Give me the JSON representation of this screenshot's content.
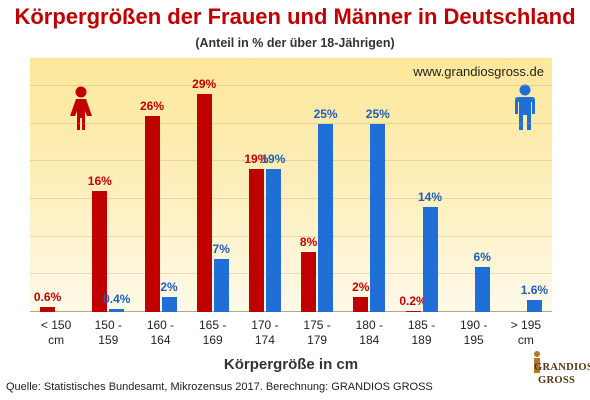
{
  "chart_data": {
    "type": "bar",
    "title": "Körpergrößen der Frauen und Männer in Deutschland",
    "subtitle": "(Anteil in % der über 18-Jährigen)",
    "xlabel": "Körpergröße in cm",
    "ylabel": "",
    "ylim": [
      0,
      30
    ],
    "grid": true,
    "legend": "icons",
    "categories": [
      [
        "< 150",
        "cm"
      ],
      [
        "150 -",
        "159"
      ],
      [
        "160 -",
        "164"
      ],
      [
        "165 -",
        "169"
      ],
      [
        "170 -",
        "174"
      ],
      [
        "175 -",
        "179"
      ],
      [
        "180 -",
        "184"
      ],
      [
        "185 -",
        "189"
      ],
      [
        "190 -",
        "195"
      ],
      [
        "> 195",
        "cm"
      ]
    ],
    "series": [
      {
        "key": "w",
        "color": "#c00000",
        "values": [
          0.6,
          16,
          26,
          29,
          19,
          8,
          2,
          0.2,
          null,
          null
        ],
        "labels": [
          "0.6%",
          "16%",
          "26%",
          "29%",
          "19%",
          "8%",
          "2%",
          "0.2%",
          "",
          ""
        ]
      },
      {
        "key": "m",
        "color": "#1f6fd6",
        "values": [
          null,
          0.4,
          2,
          7,
          19,
          25,
          25,
          14,
          6,
          1.6
        ],
        "labels": [
          "",
          "0.4%",
          "2%",
          "7%",
          "19%",
          "25%",
          "25%",
          "14%",
          "6%",
          "1.6%"
        ]
      }
    ]
  },
  "website": "www.grandiosgross.de",
  "source": "Quelle: Statistisches Bundesamt, Mikrozensus 2017. Berechnung: GRANDIOS GROSS",
  "logo": {
    "line1": "GRANDIOS",
    "line2": "GROSS"
  },
  "icons": {
    "women": "woman-icon",
    "men": "man-icon"
  },
  "colors": {
    "title": "#c00000",
    "women": "#c00000",
    "men": "#1f6fd6",
    "background_top": "#fde79a"
  }
}
